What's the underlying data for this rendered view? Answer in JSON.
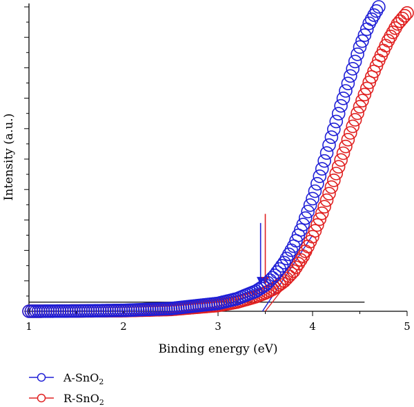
{
  "chart_data": {
    "type": "scatter",
    "xlabel": "Binding energy (eV)",
    "ylabel": "Intensity (a.u.)",
    "xlim": [
      1,
      5
    ],
    "ylim": [
      0,
      100
    ],
    "x_ticks": [
      "1",
      "2",
      "3",
      "4",
      "5"
    ],
    "y_ticks_labeled": false,
    "grid": false,
    "legend_position": "bottom-left",
    "series": [
      {
        "name": "A-SnO2",
        "name_base": "A-SnO",
        "name_sub": "2",
        "color": "#1f1fd6",
        "marker": "open-circle",
        "x": [
          1.0,
          1.5,
          2.0,
          2.5,
          3.0,
          3.2,
          3.4,
          3.5,
          3.6,
          3.7,
          3.8,
          3.9,
          4.0,
          4.1,
          4.2,
          4.3,
          4.4,
          4.5,
          4.6,
          4.7
        ],
        "y": [
          0.0,
          0.1,
          0.3,
          0.9,
          2.6,
          4.1,
          6.6,
          8.6,
          11.8,
          16.0,
          21.4,
          28.5,
          37.0,
          46.8,
          57.2,
          67.5,
          77.3,
          86.8,
          94.6,
          100.0
        ]
      },
      {
        "name": "R-SnO2",
        "name_base": "R-SnO",
        "name_sub": "2",
        "color": "#e02020",
        "marker": "open-circle",
        "x": [
          1.0,
          1.5,
          2.0,
          2.5,
          3.0,
          3.2,
          3.4,
          3.5,
          3.6,
          3.7,
          3.8,
          3.9,
          4.0,
          4.1,
          4.2,
          4.3,
          4.4,
          4.5,
          4.6,
          4.7,
          4.8,
          4.9,
          5.0
        ],
        "y": [
          0.0,
          0.1,
          0.2,
          0.6,
          1.9,
          3.0,
          4.8,
          6.0,
          7.6,
          9.9,
          13.2,
          18.1,
          24.5,
          32.2,
          40.8,
          49.7,
          58.6,
          67.2,
          75.2,
          82.4,
          88.9,
          94.4,
          98.0
        ]
      }
    ],
    "annotations": [
      {
        "type": "baseline",
        "x": [
          1.0,
          4.55
        ],
        "y": 3.0,
        "color": "#000000"
      },
      {
        "type": "tangent",
        "x": [
          3.47,
          4.0
        ],
        "y": [
          0.0,
          25.0
        ],
        "color": "#1f1fd6"
      },
      {
        "type": "tangent",
        "x": [
          3.5,
          4.0
        ],
        "y": [
          0.0,
          20.0
        ],
        "color": "#e02020"
      },
      {
        "type": "arrow",
        "x": 3.45,
        "y_from": 29.0,
        "y_to": 9.0,
        "color": "#1f1fd6"
      },
      {
        "type": "arrow",
        "x": 3.5,
        "y_from": 32.0,
        "y_to": 9.0,
        "color": "#e02020"
      }
    ]
  }
}
